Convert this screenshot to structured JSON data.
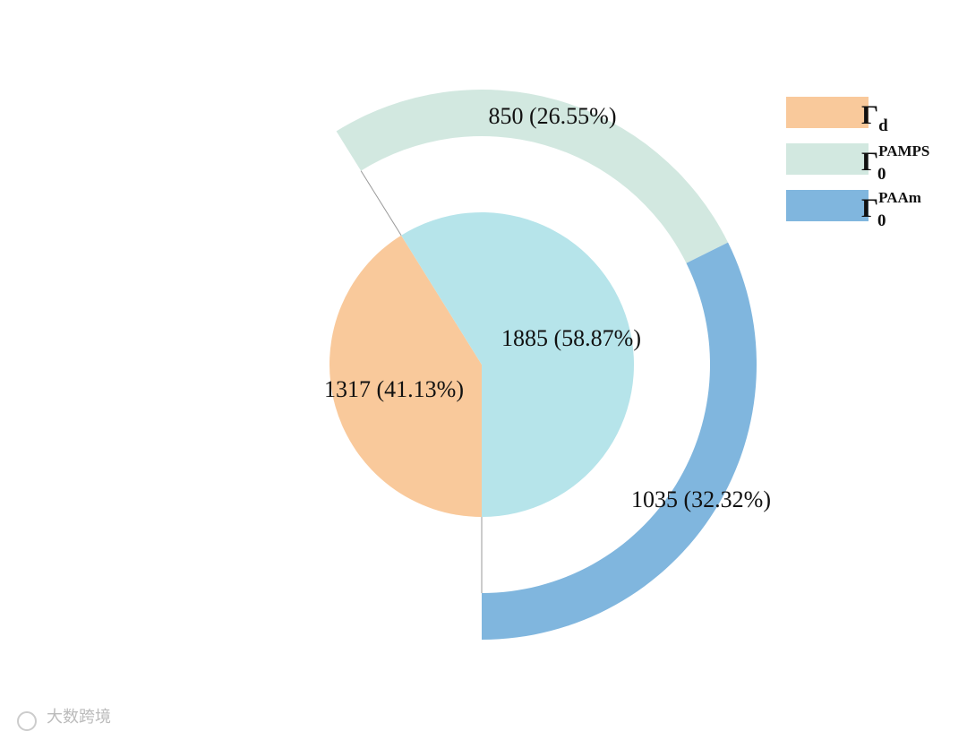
{
  "chart_data": {
    "type": "pie-of-pie",
    "inner": {
      "values": [
        1317,
        1885
      ],
      "value_labels": [
        "1317 (41.13%)",
        "1885 (58.87%)"
      ],
      "colors": [
        "#f9c99b",
        "#b6e4ea"
      ]
    },
    "outer": {
      "values": [
        850,
        1035
      ],
      "value_labels": [
        "850 (26.55%)",
        "1035 (32.32%)"
      ],
      "colors": [
        "#d2e8e0",
        "#80b6de"
      ]
    },
    "legend": [
      {
        "symbol": "Γ",
        "sub": "d",
        "color": "#f9c99b"
      },
      {
        "symbol": "Γ",
        "sub": "0",
        "sup": "PAMPS",
        "color": "#d2e8e0"
      },
      {
        "symbol": "Γ",
        "sub": "0",
        "sup": "PAAm",
        "color": "#80b6de"
      }
    ]
  },
  "watermark": "大数跨境"
}
